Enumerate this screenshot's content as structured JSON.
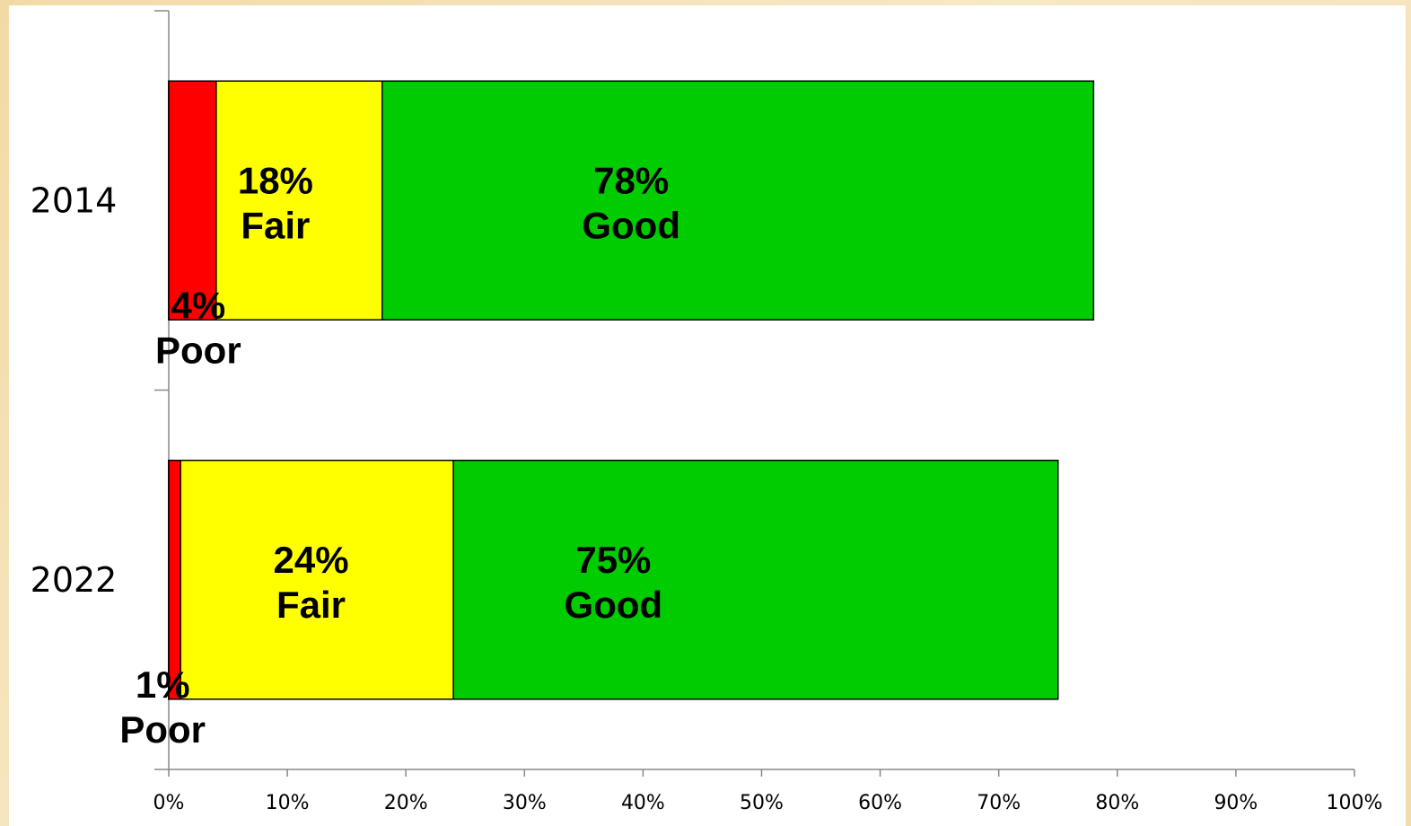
{
  "chart_data": {
    "type": "bar",
    "orientation": "horizontal",
    "stacked": "percent",
    "title": "",
    "xlabel": "",
    "ylabel": "",
    "xlim": [
      0,
      100
    ],
    "x_ticks": [
      "0%",
      "10%",
      "20%",
      "30%",
      "40%",
      "50%",
      "60%",
      "70%",
      "80%",
      "90%",
      "100%"
    ],
    "categories": [
      "2014",
      "2022"
    ],
    "series": [
      {
        "name": "Good",
        "color": "#00cc00",
        "values": [
          78,
          75
        ],
        "labels": [
          "78%\nGood",
          "75%\nGood"
        ]
      },
      {
        "name": "Fair",
        "color": "#ffff00",
        "values": [
          18,
          24
        ],
        "labels": [
          "18%\nFair",
          "24%\nFair"
        ]
      },
      {
        "name": "Poor",
        "color": "#ff0000",
        "values": [
          4,
          1
        ],
        "labels": [
          "4%\nPoor",
          "1%\nPoor"
        ]
      }
    ],
    "grid": false,
    "legend": "none"
  }
}
